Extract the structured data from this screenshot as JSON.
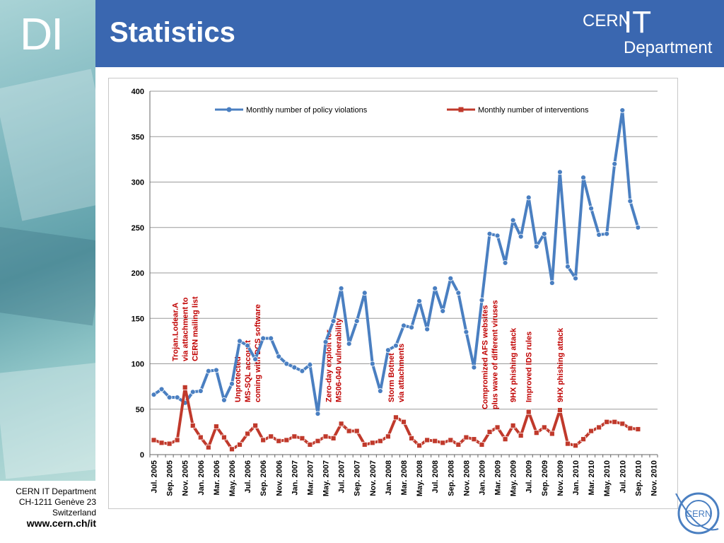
{
  "slide": {
    "logo_text": "DI",
    "title": "Statistics",
    "cern_logo": {
      "cern": "CERN",
      "it": "IT",
      "department": "Department"
    },
    "footer": {
      "line1": "CERN IT Department",
      "line2": "CH-1211 Genève 23",
      "line3": "Switzerland",
      "url": "www.cern.ch/it"
    },
    "seal_text": "CERN",
    "colors": {
      "header": "#3a67b0",
      "series_violations": "#4a7fc1",
      "series_interventions": "#c0392b",
      "annotation": "#c00000"
    }
  },
  "chart_data": {
    "type": "line",
    "title": "",
    "xlabel": "",
    "ylabel": "",
    "ylim": [
      0,
      400
    ],
    "yticks": [
      0,
      50,
      100,
      150,
      200,
      250,
      300,
      350,
      400
    ],
    "grid": true,
    "legend_position": "top",
    "x": [
      "Jul. 2005",
      "Aug. 2005",
      "Sep. 2005",
      "Oct. 2005",
      "Nov. 2005",
      "Dec. 2005",
      "Jan. 2006",
      "Feb. 2006",
      "Mar. 2006",
      "Apr. 2006",
      "May. 2006",
      "Jun. 2006",
      "Jul. 2006",
      "Aug. 2006",
      "Sep. 2006",
      "Oct. 2006",
      "Nov. 2006",
      "Dec. 2006",
      "Jan. 2007",
      "Feb. 2007",
      "Mar. 2007",
      "Apr. 2007",
      "May. 2007",
      "Jun. 2007",
      "Jul. 2007",
      "Aug. 2007",
      "Sep. 2007",
      "Oct. 2007",
      "Nov. 2007",
      "Dec. 2007",
      "Jan. 2008",
      "Feb. 2008",
      "Mar. 2008",
      "Apr. 2008",
      "May. 2008",
      "Jun. 2008",
      "Jul. 2008",
      "Aug. 2008",
      "Sep. 2008",
      "Oct. 2008",
      "Nov. 2008",
      "Dec. 2008",
      "Jan. 2009",
      "Feb. 2009",
      "Mar. 2009",
      "Apr. 2009",
      "May. 2009",
      "Jun. 2009",
      "Jul. 2009",
      "Aug. 2009",
      "Sep. 2009",
      "Oct. 2009",
      "Nov. 2009",
      "Dec. 2009",
      "Jan. 2010",
      "Feb. 2010",
      "Mar. 2010",
      "Apr. 2010",
      "May. 2010",
      "Jun. 2010",
      "Jul. 2010",
      "Aug. 2010",
      "Sep. 2010",
      "Oct. 2010",
      "Nov. 2010"
    ],
    "xtick_labels": [
      "Jul. 2005",
      "Sep. 2005",
      "Nov. 2005",
      "Jan. 2006",
      "Mar. 2006",
      "May. 2006",
      "Jul. 2006",
      "Sep. 2006",
      "Nov. 2006",
      "Jan. 2007",
      "Mar. 2007",
      "May. 2007",
      "Jul. 2007",
      "Sep. 2007",
      "Nov. 2007",
      "Jan. 2008",
      "Mar. 2008",
      "May. 2008",
      "Jul. 2008",
      "Sep. 2008",
      "Nov. 2008",
      "Jan. 2009",
      "Mar. 2009",
      "May. 2009",
      "Jul. 2009",
      "Sep. 2009",
      "Nov. 2009",
      "Jan. 2010",
      "Mar. 2010",
      "May. 2010",
      "Jul. 2010",
      "Sep. 2010",
      "Nov. 2010"
    ],
    "series": [
      {
        "name": "Monthly number of policy violations",
        "color": "#4a7fc1",
        "marker": "circle",
        "values": [
          66,
          72,
          63,
          63,
          57,
          69,
          70,
          92,
          93,
          60,
          78,
          125,
          120,
          105,
          128,
          128,
          108,
          100,
          96,
          92,
          99,
          45,
          124,
          147,
          183,
          122,
          147,
          178,
          100,
          70,
          115,
          120,
          142,
          140,
          169,
          138,
          183,
          158,
          194,
          178,
          135,
          96,
          170,
          243,
          241,
          211,
          258,
          240,
          283,
          229,
          243,
          189,
          311,
          207,
          194,
          305,
          271,
          242,
          243,
          320,
          379,
          279,
          250,
          null,
          null
        ]
      },
      {
        "name": "Monthly number of interventions",
        "color": "#c0392b",
        "marker": "square",
        "values": [
          16,
          13,
          12,
          16,
          74,
          32,
          19,
          8,
          31,
          19,
          6,
          11,
          23,
          32,
          16,
          20,
          15,
          16,
          20,
          18,
          11,
          15,
          20,
          18,
          34,
          26,
          26,
          11,
          13,
          15,
          20,
          41,
          36,
          18,
          10,
          16,
          15,
          13,
          16,
          11,
          19,
          17,
          11,
          25,
          30,
          17,
          32,
          21,
          47,
          24,
          30,
          23,
          49,
          12,
          10,
          17,
          26,
          30,
          36,
          36,
          34,
          29,
          28,
          null,
          null
        ]
      }
    ],
    "annotations": [
      {
        "at": "Nov. 2005",
        "lines": [
          "Trojan.Lodear.A",
          "via attachment to",
          "CERN mailing list"
        ]
      },
      {
        "at": "Jul. 2006",
        "lines": [
          "Unprotected",
          "MS-SQL account",
          "coming with DCS software"
        ]
      },
      {
        "at": "Jun. 2007",
        "lines": [
          "Zero-day exploit for",
          "MS06-040 vulnerability"
        ]
      },
      {
        "at": "Feb. 2008",
        "lines": [
          "Storm Botnet",
          "via attachments"
        ]
      },
      {
        "at": "Feb. 2009",
        "lines": [
          "Compromized AFS websites",
          "plus wave of different viruses"
        ]
      },
      {
        "at": "May. 2009",
        "lines": [
          "9HX phishing attack"
        ]
      },
      {
        "at": "Jul. 2009",
        "lines": [
          "Improved IDS rules"
        ]
      },
      {
        "at": "Nov. 2009",
        "lines": [
          "9HX phishing attack"
        ]
      }
    ]
  }
}
